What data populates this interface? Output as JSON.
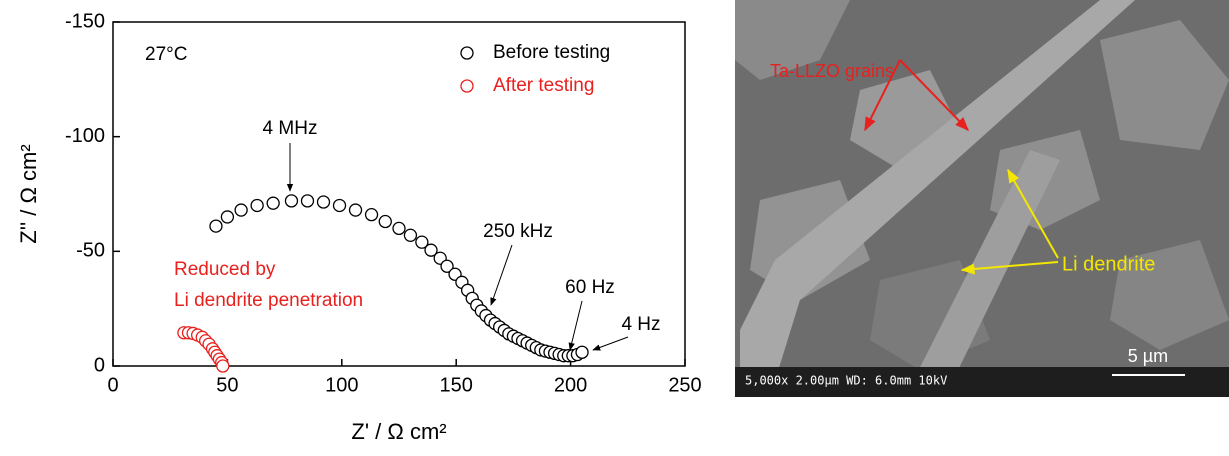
{
  "chart_data": {
    "type": "scatter",
    "xlabel": "Z' / Ω cm²",
    "ylabel": "Z'' / Ω cm²",
    "xlim": [
      0,
      250
    ],
    "ylim": [
      0,
      -150
    ],
    "xticks": [
      0,
      50,
      100,
      150,
      200,
      250
    ],
    "yticks": [
      0,
      -50,
      -100,
      -150
    ],
    "legend": "upper right",
    "series": [
      {
        "name": "Before testing",
        "color": "#000000",
        "x": [
          45,
          50,
          56,
          63,
          70,
          78,
          85,
          92,
          99,
          106,
          113,
          119,
          125,
          130,
          135,
          139,
          143,
          146,
          149.5,
          152.5,
          155,
          157,
          159,
          161,
          163,
          165,
          167,
          169,
          171,
          173,
          175,
          177,
          179,
          181,
          183,
          185,
          187,
          189,
          191,
          193,
          195,
          197,
          199,
          201,
          203,
          205
        ],
        "values": [
          -61,
          -65,
          -68,
          -70,
          -71,
          -72,
          -72,
          -71.5,
          -70,
          -68,
          -66,
          -63,
          -60,
          -57,
          -54,
          -50.5,
          -47,
          -43.5,
          -40,
          -36.5,
          -33,
          -29.5,
          -26.5,
          -24,
          -22,
          -20,
          -18.5,
          -17,
          -15.5,
          -14,
          -13,
          -12,
          -11,
          -10,
          -9,
          -8,
          -7,
          -6.5,
          -6,
          -5.5,
          -5,
          -4.5,
          -4.5,
          -4.5,
          -5,
          -6
        ]
      },
      {
        "name": "After testing",
        "color": "#e8201e",
        "x": [
          31,
          33,
          35,
          37,
          39,
          40.5,
          42,
          43.5,
          44.5,
          45.5,
          46.5,
          47.5,
          48
        ],
        "values": [
          -14.5,
          -14.5,
          -14.2,
          -13.5,
          -12.5,
          -11,
          -9.5,
          -7.5,
          -6,
          -4.5,
          -3,
          -1.5,
          0
        ]
      }
    ],
    "annotations": [
      "27°C",
      "4 MHz",
      "250 kHz",
      "60 Hz",
      "4 Hz",
      "Reduced by",
      "Li dendrite penetration"
    ]
  },
  "image": {
    "labels": [
      "Ta-LLZO grains",
      "Li dendrite",
      "5 µm",
      "5,000x 2.00μm WD: 6.0mm 10kV"
    ]
  }
}
